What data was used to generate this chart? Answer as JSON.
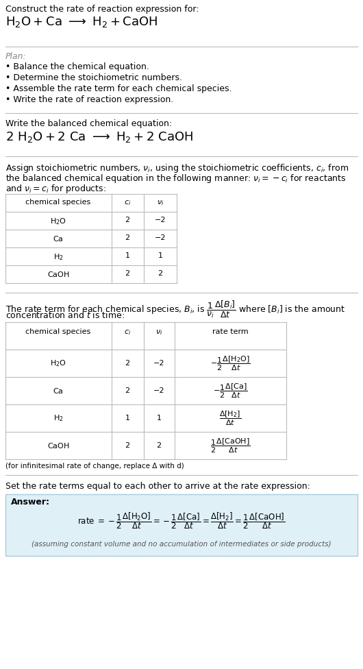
{
  "bg_color": "#ffffff",
  "text_color": "#000000",
  "answer_bg": "#dff0f7",
  "answer_border": "#aaccdd",
  "title_line1": "Construct the rate of reaction expression for:",
  "plan_title": "Plan:",
  "plan_bullets": [
    "• Balance the chemical equation.",
    "• Determine the stoichiometric numbers.",
    "• Assemble the rate term for each chemical species.",
    "• Write the rate of reaction expression."
  ],
  "balanced_label": "Write the balanced chemical equation:",
  "stoich_intro_l1": "Assign stoichiometric numbers, $\\nu_i$, using the stoichiometric coefficients, $c_i$, from",
  "stoich_intro_l2": "the balanced chemical equation in the following manner: $\\nu_i = -c_i$ for reactants",
  "stoich_intro_l3": "and $\\nu_i = c_i$ for products:",
  "table1_rows": [
    [
      "H₂O",
      "2",
      "−2"
    ],
    [
      "Ca",
      "2",
      "−2"
    ],
    [
      "H₂",
      "1",
      "1"
    ],
    [
      "CaOH",
      "2",
      "2"
    ]
  ],
  "rate_intro_l1": "The rate term for each chemical species, $B_i$, is $\\dfrac{1}{\\nu_i}\\dfrac{\\Delta[B_i]}{\\Delta t}$ where $[B_i]$ is the amount",
  "rate_intro_l2": "concentration and $t$ is time:",
  "table2_rows": [
    [
      "H₂O",
      "2",
      "−2"
    ],
    [
      "Ca",
      "2",
      "−2"
    ],
    [
      "H₂",
      "1",
      "1"
    ],
    [
      "CaOH",
      "2",
      "2"
    ]
  ],
  "infinitesimal_note": "(for infinitesimal rate of change, replace Δ with d)",
  "set_rate_text": "Set the rate terms equal to each other to arrive at the rate expression:",
  "answer_label": "Answer:",
  "answer_footnote": "(assuming constant volume and no accumulation of intermediates or side products)"
}
